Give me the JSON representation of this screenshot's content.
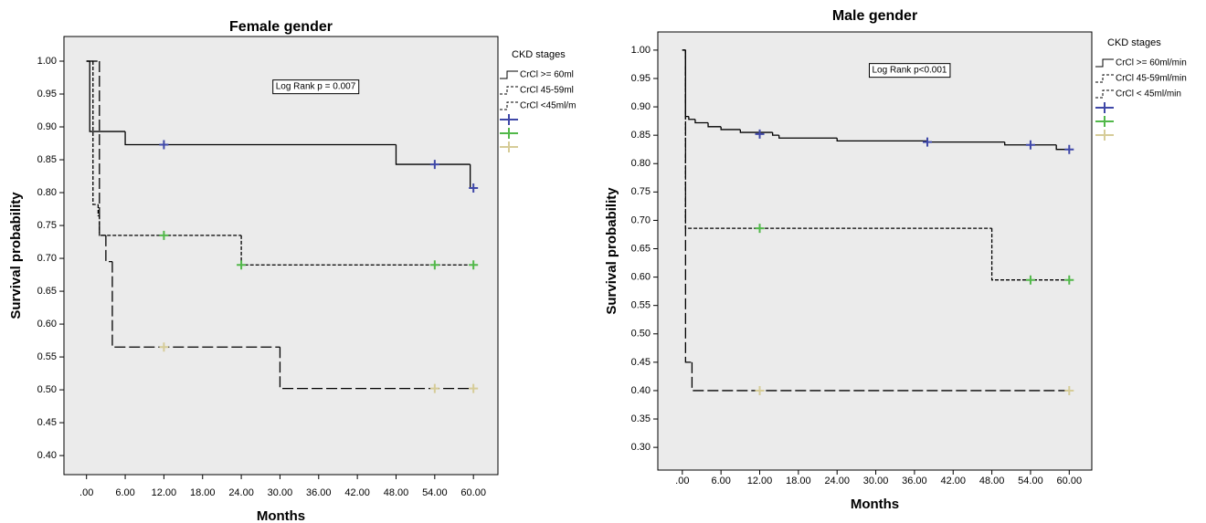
{
  "chart_data": [
    {
      "type": "step",
      "title": "Female gender",
      "x_label": "Months",
      "y_label": "Survival probability",
      "annotation": "Log Rank p = 0.007",
      "legend_title": "CKD stages",
      "legend": "right",
      "xlim": [
        -3.5,
        63.8
      ],
      "ylim": [
        0.371,
        1.0375
      ],
      "xticks": [
        {
          "value": 0,
          "label": ".00"
        },
        {
          "value": 6,
          "label": "6.00"
        },
        {
          "value": 12,
          "label": "12.00"
        },
        {
          "value": 18,
          "label": "18.00"
        },
        {
          "value": 24,
          "label": "24.00"
        },
        {
          "value": 30,
          "label": "30.00"
        },
        {
          "value": 36,
          "label": "36.00"
        },
        {
          "value": 42,
          "label": "42.00"
        },
        {
          "value": 48,
          "label": "48.00"
        },
        {
          "value": 54,
          "label": "54.00"
        },
        {
          "value": 60,
          "label": "60.00"
        }
      ],
      "yticks": [
        {
          "value": 0.4,
          "label": "0.40"
        },
        {
          "value": 0.45,
          "label": "0.45"
        },
        {
          "value": 0.5,
          "label": "0.50"
        },
        {
          "value": 0.55,
          "label": "0.55"
        },
        {
          "value": 0.6,
          "label": "0.60"
        },
        {
          "value": 0.65,
          "label": "0.65"
        },
        {
          "value": 0.7,
          "label": "0.70"
        },
        {
          "value": 0.75,
          "label": "0.75"
        },
        {
          "value": 0.8,
          "label": "0.80"
        },
        {
          "value": 0.85,
          "label": "0.85"
        },
        {
          "value": 0.9,
          "label": "0.90"
        },
        {
          "value": 0.95,
          "label": "0.95"
        },
        {
          "value": 1.0,
          "label": "1.00"
        }
      ],
      "series": [
        {
          "name": "CrCl >= 60ml",
          "color": "#000000",
          "line_style": "solid",
          "censor_color": "#3f48a8",
          "x": [
            0,
            0.5,
            6,
            48,
            59.5,
            60
          ],
          "values": [
            1.0,
            0.893,
            0.873,
            0.843,
            0.807,
            0.807
          ],
          "censored_x": [
            12,
            54,
            60
          ],
          "censored_values": [
            0.873,
            0.843,
            0.807
          ]
        },
        {
          "name": "CrCl 45-59ml",
          "color": "#000000",
          "line_style": "dashed",
          "censor_color": "#52b84a",
          "x": [
            0,
            1,
            1.8,
            2,
            24,
            60
          ],
          "values": [
            1.0,
            0.782,
            0.765,
            0.735,
            0.69,
            0.69
          ],
          "censored_x": [
            12,
            24,
            54,
            60
          ],
          "censored_values": [
            0.735,
            0.69,
            0.69,
            0.69
          ]
        },
        {
          "name": "CrCl <45ml/m",
          "color": "#000000",
          "line_style": "long-dashed",
          "censor_color": "#d6cc98",
          "x": [
            0,
            2,
            3,
            4,
            30,
            60
          ],
          "values": [
            1.0,
            0.735,
            0.695,
            0.565,
            0.502,
            0.502
          ],
          "censored_x": [
            12,
            54,
            60
          ],
          "censored_values": [
            0.565,
            0.502,
            0.502
          ]
        }
      ]
    },
    {
      "type": "step",
      "title": "Male gender",
      "x_label": "Months",
      "y_label": "Survival probability",
      "annotation": "Log Rank p<0.001",
      "legend_title": "CKD stages",
      "legend": "right",
      "xlim": [
        -3.8,
        63.5
      ],
      "ylim": [
        0.26,
        1.032
      ],
      "xticks": [
        {
          "value": 0,
          "label": ".00"
        },
        {
          "value": 6,
          "label": "6.00"
        },
        {
          "value": 12,
          "label": "12.00"
        },
        {
          "value": 18,
          "label": "18.00"
        },
        {
          "value": 24,
          "label": "24.00"
        },
        {
          "value": 30,
          "label": "30.00"
        },
        {
          "value": 36,
          "label": "36.00"
        },
        {
          "value": 42,
          "label": "42.00"
        },
        {
          "value": 48,
          "label": "48.00"
        },
        {
          "value": 54,
          "label": "54.00"
        },
        {
          "value": 60,
          "label": "60.00"
        }
      ],
      "yticks": [
        {
          "value": 0.3,
          "label": "0.30"
        },
        {
          "value": 0.35,
          "label": "0.35"
        },
        {
          "value": 0.4,
          "label": "0.40"
        },
        {
          "value": 0.45,
          "label": "0.45"
        },
        {
          "value": 0.5,
          "label": "0.50"
        },
        {
          "value": 0.55,
          "label": "0.55"
        },
        {
          "value": 0.6,
          "label": "0.60"
        },
        {
          "value": 0.65,
          "label": "0.65"
        },
        {
          "value": 0.7,
          "label": "0.70"
        },
        {
          "value": 0.75,
          "label": "0.75"
        },
        {
          "value": 0.8,
          "label": "0.80"
        },
        {
          "value": 0.85,
          "label": "0.85"
        },
        {
          "value": 0.9,
          "label": "0.90"
        },
        {
          "value": 0.95,
          "label": "0.95"
        },
        {
          "value": 1.0,
          "label": "1.00"
        }
      ],
      "series": [
        {
          "name": "CrCl >= 60ml/min",
          "color": "#000000",
          "line_style": "solid",
          "censor_color": "#3f48a8",
          "x": [
            0,
            0.5,
            1,
            2,
            4,
            6,
            9,
            14,
            15,
            24,
            38,
            50,
            58,
            60
          ],
          "values": [
            1.0,
            0.883,
            0.878,
            0.872,
            0.865,
            0.86,
            0.855,
            0.85,
            0.845,
            0.84,
            0.838,
            0.833,
            0.825,
            0.825
          ],
          "censored_x": [
            12,
            38,
            54,
            60
          ],
          "censored_values": [
            0.852,
            0.838,
            0.833,
            0.825
          ]
        },
        {
          "name": "CrCl 45-59ml/min",
          "color": "#000000",
          "line_style": "dashed",
          "censor_color": "#52b84a",
          "x": [
            0,
            0.5,
            48,
            60
          ],
          "values": [
            1.0,
            0.686,
            0.595,
            0.595
          ],
          "censored_x": [
            12,
            54,
            60
          ],
          "censored_values": [
            0.686,
            0.595,
            0.595
          ]
        },
        {
          "name": "CrCl < 45ml/min",
          "color": "#000000",
          "line_style": "long-dashed",
          "censor_color": "#d6cc98",
          "x": [
            0,
            0.5,
            1.5,
            60
          ],
          "values": [
            1.0,
            0.45,
            0.4,
            0.4
          ],
          "censored_x": [
            12,
            60
          ],
          "censored_values": [
            0.4,
            0.4
          ]
        }
      ]
    }
  ]
}
